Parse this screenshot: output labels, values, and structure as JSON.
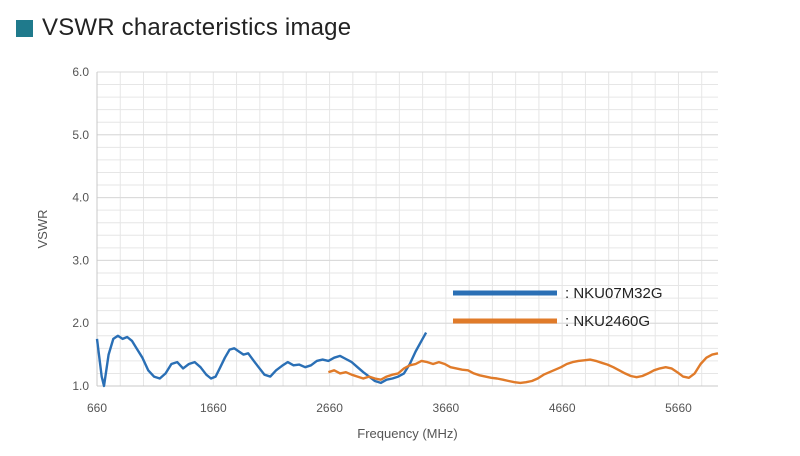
{
  "page_title": "VSWR characteristics image",
  "colors": {
    "title_square": "#1f7a8c",
    "blue": "#2a6fb5",
    "orange": "#e07b2a",
    "grid": "#e6e6e6"
  },
  "chart_data": {
    "type": "line",
    "title": "VSWR characteristics image",
    "xlabel": "Frequency (MHz)",
    "ylabel": "VSWR",
    "xlim": [
      660,
      6000
    ],
    "ylim": [
      1.0,
      6.0
    ],
    "xticks": [
      660,
      1660,
      2660,
      3660,
      4660,
      5660
    ],
    "xtick_labels": [
      "660",
      "1660",
      "2660",
      "3660",
      "4660",
      "5660"
    ],
    "yticks": [
      1.0,
      2.0,
      3.0,
      4.0,
      5.0,
      6.0
    ],
    "ytick_labels": [
      "1.0",
      "2.0",
      "3.0",
      "4.0",
      "5.0",
      "6.0"
    ],
    "grid": true,
    "legend_position": "right",
    "series": [
      {
        "name": "NKU07M32G",
        "legend_label": ": NKU07M32G",
        "color": "#2a6fb5",
        "points": [
          [
            660,
            1.75
          ],
          [
            700,
            1.15
          ],
          [
            720,
            1.0
          ],
          [
            760,
            1.5
          ],
          [
            800,
            1.75
          ],
          [
            840,
            1.8
          ],
          [
            880,
            1.75
          ],
          [
            920,
            1.78
          ],
          [
            960,
            1.72
          ],
          [
            1000,
            1.6
          ],
          [
            1050,
            1.45
          ],
          [
            1100,
            1.25
          ],
          [
            1150,
            1.15
          ],
          [
            1200,
            1.12
          ],
          [
            1250,
            1.2
          ],
          [
            1300,
            1.35
          ],
          [
            1350,
            1.38
          ],
          [
            1400,
            1.28
          ],
          [
            1450,
            1.35
          ],
          [
            1500,
            1.38
          ],
          [
            1550,
            1.3
          ],
          [
            1600,
            1.18
          ],
          [
            1640,
            1.12
          ],
          [
            1680,
            1.15
          ],
          [
            1720,
            1.3
          ],
          [
            1760,
            1.45
          ],
          [
            1800,
            1.58
          ],
          [
            1840,
            1.6
          ],
          [
            1880,
            1.55
          ],
          [
            1920,
            1.5
          ],
          [
            1960,
            1.52
          ],
          [
            2000,
            1.42
          ],
          [
            2050,
            1.3
          ],
          [
            2100,
            1.18
          ],
          [
            2150,
            1.15
          ],
          [
            2200,
            1.25
          ],
          [
            2250,
            1.32
          ],
          [
            2300,
            1.38
          ],
          [
            2350,
            1.33
          ],
          [
            2400,
            1.34
          ],
          [
            2450,
            1.3
          ],
          [
            2500,
            1.33
          ],
          [
            2550,
            1.4
          ],
          [
            2600,
            1.42
          ],
          [
            2650,
            1.4
          ],
          [
            2700,
            1.45
          ],
          [
            2750,
            1.48
          ],
          [
            2800,
            1.43
          ],
          [
            2850,
            1.38
          ],
          [
            2900,
            1.3
          ],
          [
            2950,
            1.22
          ],
          [
            3000,
            1.15
          ],
          [
            3050,
            1.08
          ],
          [
            3100,
            1.05
          ],
          [
            3150,
            1.1
          ],
          [
            3200,
            1.12
          ],
          [
            3250,
            1.15
          ],
          [
            3300,
            1.2
          ],
          [
            3350,
            1.35
          ],
          [
            3400,
            1.55
          ],
          [
            3450,
            1.72
          ],
          [
            3490,
            1.85
          ]
        ]
      },
      {
        "name": "NKU2460G",
        "legend_label": ": NKU2460G",
        "color": "#e07b2a",
        "points": [
          [
            2650,
            1.22
          ],
          [
            2700,
            1.25
          ],
          [
            2750,
            1.2
          ],
          [
            2800,
            1.22
          ],
          [
            2850,
            1.18
          ],
          [
            2900,
            1.15
          ],
          [
            2950,
            1.12
          ],
          [
            3000,
            1.15
          ],
          [
            3050,
            1.12
          ],
          [
            3100,
            1.1
          ],
          [
            3150,
            1.15
          ],
          [
            3200,
            1.18
          ],
          [
            3250,
            1.2
          ],
          [
            3300,
            1.28
          ],
          [
            3350,
            1.33
          ],
          [
            3400,
            1.35
          ],
          [
            3450,
            1.4
          ],
          [
            3500,
            1.38
          ],
          [
            3550,
            1.35
          ],
          [
            3600,
            1.38
          ],
          [
            3650,
            1.35
          ],
          [
            3700,
            1.3
          ],
          [
            3750,
            1.28
          ],
          [
            3800,
            1.26
          ],
          [
            3850,
            1.25
          ],
          [
            3900,
            1.2
          ],
          [
            3950,
            1.17
          ],
          [
            4000,
            1.15
          ],
          [
            4050,
            1.13
          ],
          [
            4100,
            1.12
          ],
          [
            4150,
            1.1
          ],
          [
            4200,
            1.08
          ],
          [
            4250,
            1.06
          ],
          [
            4300,
            1.05
          ],
          [
            4350,
            1.06
          ],
          [
            4400,
            1.08
          ],
          [
            4450,
            1.12
          ],
          [
            4500,
            1.18
          ],
          [
            4550,
            1.22
          ],
          [
            4600,
            1.26
          ],
          [
            4650,
            1.3
          ],
          [
            4700,
            1.35
          ],
          [
            4750,
            1.38
          ],
          [
            4800,
            1.4
          ],
          [
            4850,
            1.41
          ],
          [
            4900,
            1.42
          ],
          [
            4950,
            1.4
          ],
          [
            5000,
            1.37
          ],
          [
            5050,
            1.34
          ],
          [
            5100,
            1.3
          ],
          [
            5150,
            1.25
          ],
          [
            5200,
            1.2
          ],
          [
            5250,
            1.16
          ],
          [
            5300,
            1.14
          ],
          [
            5350,
            1.16
          ],
          [
            5400,
            1.2
          ],
          [
            5450,
            1.25
          ],
          [
            5500,
            1.28
          ],
          [
            5550,
            1.3
          ],
          [
            5600,
            1.28
          ],
          [
            5650,
            1.22
          ],
          [
            5700,
            1.15
          ],
          [
            5750,
            1.13
          ],
          [
            5800,
            1.2
          ],
          [
            5850,
            1.35
          ],
          [
            5900,
            1.45
          ],
          [
            5950,
            1.5
          ],
          [
            6000,
            1.52
          ]
        ]
      }
    ]
  }
}
